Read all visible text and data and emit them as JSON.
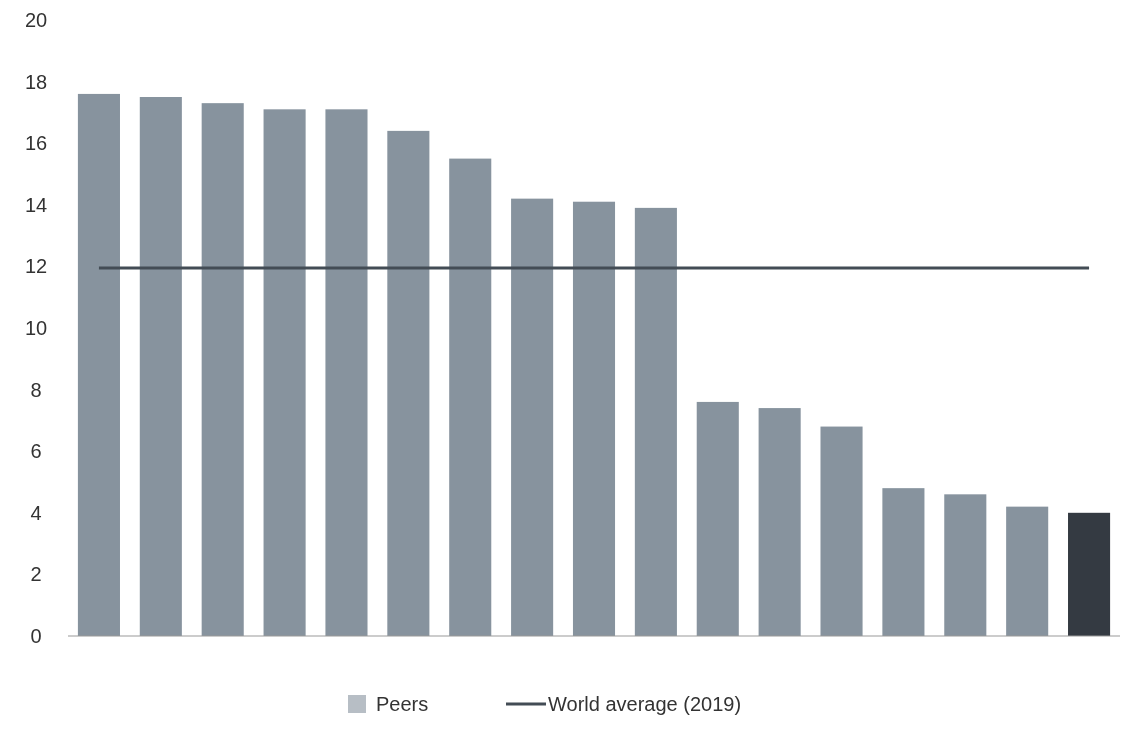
{
  "chart_data": {
    "type": "bar",
    "categories": [
      null,
      null,
      null,
      null,
      null,
      null,
      null,
      null,
      null,
      null,
      null,
      null,
      null,
      null,
      null,
      null,
      null
    ],
    "series": [
      {
        "name": "Peers",
        "color": "#87939e",
        "colors": [
          "#87939e",
          "#87939e",
          "#87939e",
          "#87939e",
          "#87939e",
          "#87939e",
          "#87939e",
          "#87939e",
          "#87939e",
          "#87939e",
          "#87939e",
          "#87939e",
          "#87939e",
          "#87939e",
          "#87939e",
          "#87939e",
          "#343a42"
        ],
        "values": [
          17.6,
          17.5,
          17.3,
          17.1,
          17.1,
          16.4,
          15.5,
          14.2,
          14.1,
          13.9,
          7.6,
          7.4,
          6.8,
          4.8,
          4.6,
          4.2,
          4.0
        ]
      },
      {
        "name": "World average (2019)",
        "type": "line",
        "color": "#434c55",
        "values": [
          11.95,
          11.95,
          11.95,
          11.95,
          11.95,
          11.95,
          11.95,
          11.95,
          11.95,
          11.95,
          11.95,
          11.95,
          11.95,
          11.95,
          11.95,
          11.95,
          11.95
        ]
      }
    ],
    "ylim": [
      0,
      20
    ],
    "yticks": [
      0,
      2,
      4,
      6,
      8,
      10,
      12,
      14,
      16,
      18,
      20
    ],
    "grid": false,
    "legend": "bottom"
  }
}
